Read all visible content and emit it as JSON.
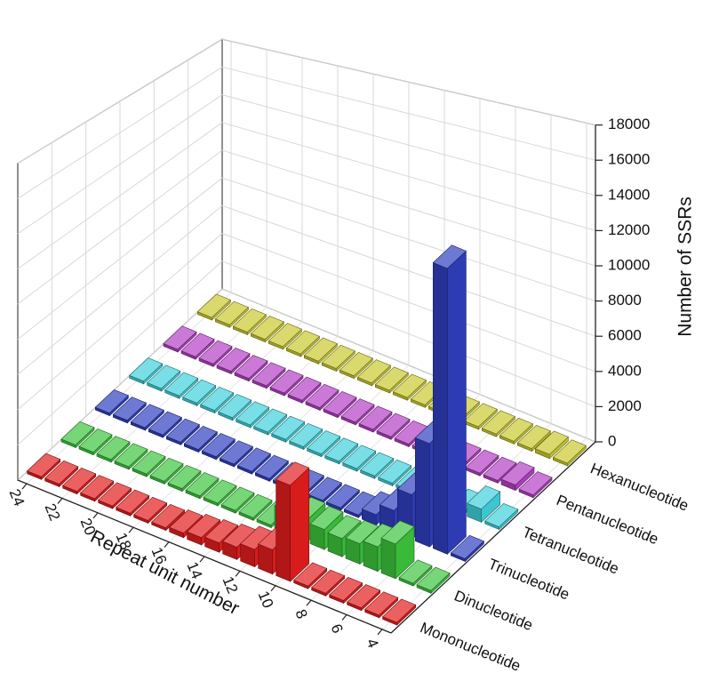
{
  "chart_data": {
    "type": "bar3d",
    "x_label": "Repeat unit number",
    "y_label": "Number of SSRs",
    "x": [
      4,
      5,
      6,
      7,
      8,
      9,
      10,
      11,
      12,
      13,
      14,
      15,
      16,
      17,
      18,
      19,
      20,
      21,
      22,
      23,
      24
    ],
    "xlim": [
      3.5,
      24.5
    ],
    "xticks": [
      4,
      6,
      8,
      10,
      12,
      14,
      16,
      18,
      20,
      22,
      24
    ],
    "ylim": [
      0,
      18000
    ],
    "yticks": [
      0,
      2000,
      4000,
      6000,
      8000,
      10000,
      12000,
      14000,
      16000,
      18000
    ],
    "grid": true,
    "series": [
      {
        "name": "Mononucleotide",
        "color": "#e31d1d",
        "values": [
          0,
          0,
          0,
          0,
          0,
          0,
          4700,
          1100,
          750,
          500,
          350,
          250,
          100,
          0,
          0,
          0,
          0,
          0,
          0,
          0,
          0
        ]
      },
      {
        "name": "Dinucleotide",
        "color": "#3cc43c",
        "values": [
          0,
          0,
          1600,
          1100,
          900,
          800,
          900,
          1000,
          1100,
          0,
          0,
          0,
          0,
          0,
          0,
          0,
          0,
          0,
          0,
          0,
          0
        ]
      },
      {
        "name": "Trinucleotide",
        "color": "#2f3fbf",
        "values": [
          0,
          14500,
          5200,
          2200,
          1000,
          400,
          0,
          0,
          0,
          0,
          0,
          0,
          0,
          0,
          0,
          0,
          0,
          0,
          0,
          0,
          0
        ]
      },
      {
        "name": "Tetranucleotide",
        "color": "#3fd0da",
        "values": [
          0,
          550,
          0,
          0,
          0,
          0,
          0,
          0,
          0,
          0,
          0,
          0,
          0,
          0,
          0,
          0,
          0,
          0,
          0,
          0,
          0
        ]
      },
      {
        "name": "Pentanucleotide",
        "color": "#b33fc4",
        "values": [
          0,
          150,
          0,
          0,
          0,
          0,
          0,
          0,
          0,
          0,
          0,
          0,
          0,
          0,
          0,
          0,
          0,
          0,
          0,
          0,
          0
        ]
      },
      {
        "name": "Hexanucleotide",
        "color": "#c9c92e",
        "values": [
          0,
          80,
          0,
          0,
          0,
          0,
          0,
          0,
          0,
          0,
          0,
          0,
          0,
          0,
          0,
          0,
          0,
          0,
          0,
          0,
          0
        ]
      }
    ]
  }
}
